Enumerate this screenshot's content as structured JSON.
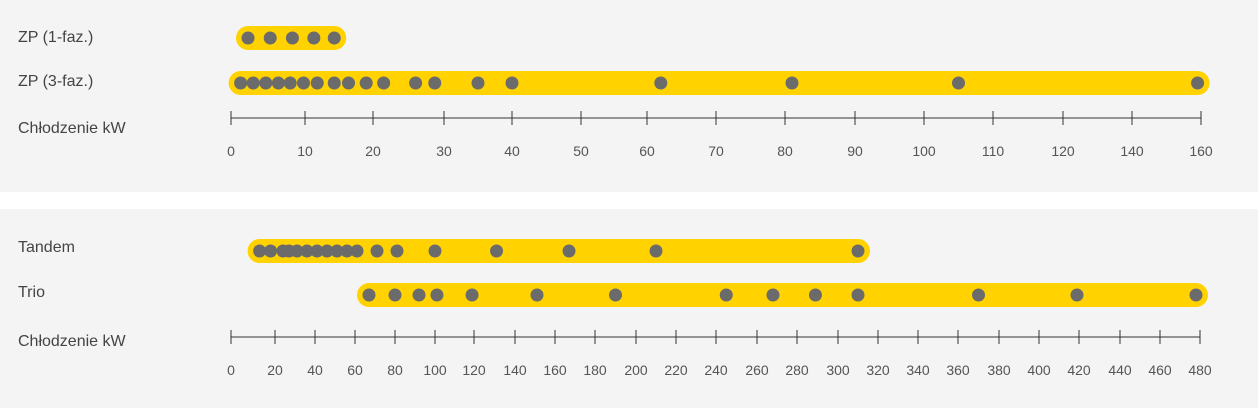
{
  "colors": {
    "panel_bg": "#f4f4f4",
    "bar": "#ffd200",
    "dot": "#6b6b6b",
    "axis": "#333333",
    "text": "#444444"
  },
  "chart_data": [
    {
      "type": "scatter",
      "axis_label": "Chłodzenie kW",
      "axis_ticks": [
        0,
        10,
        20,
        30,
        40,
        50,
        60,
        70,
        80,
        90,
        100,
        110,
        120,
        140,
        160
      ],
      "series": [
        {
          "name": "ZP (1-faz.)",
          "values": [
            2.3,
            5.3,
            8.3,
            11.3,
            14.3
          ]
        },
        {
          "name": "ZP (3-faz.)",
          "values": [
            1.3,
            3.0,
            4.7,
            6.4,
            8.0,
            9.8,
            11.8,
            14.3,
            16.4,
            19.0,
            21.5,
            26.0,
            28.7,
            35.0,
            40.0,
            62.0,
            81.0,
            105.0,
            159.0
          ]
        }
      ]
    },
    {
      "type": "scatter",
      "axis_label": "Chłodzenie kW",
      "axis_ticks": [
        0,
        20,
        40,
        60,
        80,
        100,
        120,
        140,
        160,
        180,
        200,
        220,
        240,
        260,
        280,
        300,
        320,
        340,
        360,
        380,
        400,
        420,
        440,
        460,
        480
      ],
      "series": [
        {
          "name": "Tandem",
          "values": [
            13,
            18,
            24,
            27,
            31,
            36,
            41,
            46,
            51,
            56,
            61,
            71,
            81,
            100,
            131,
            167,
            210,
            310
          ]
        },
        {
          "name": "Trio",
          "values": [
            67,
            80,
            92,
            101,
            119,
            151,
            190,
            245,
            268,
            289,
            310,
            370,
            419,
            478
          ]
        }
      ]
    }
  ]
}
